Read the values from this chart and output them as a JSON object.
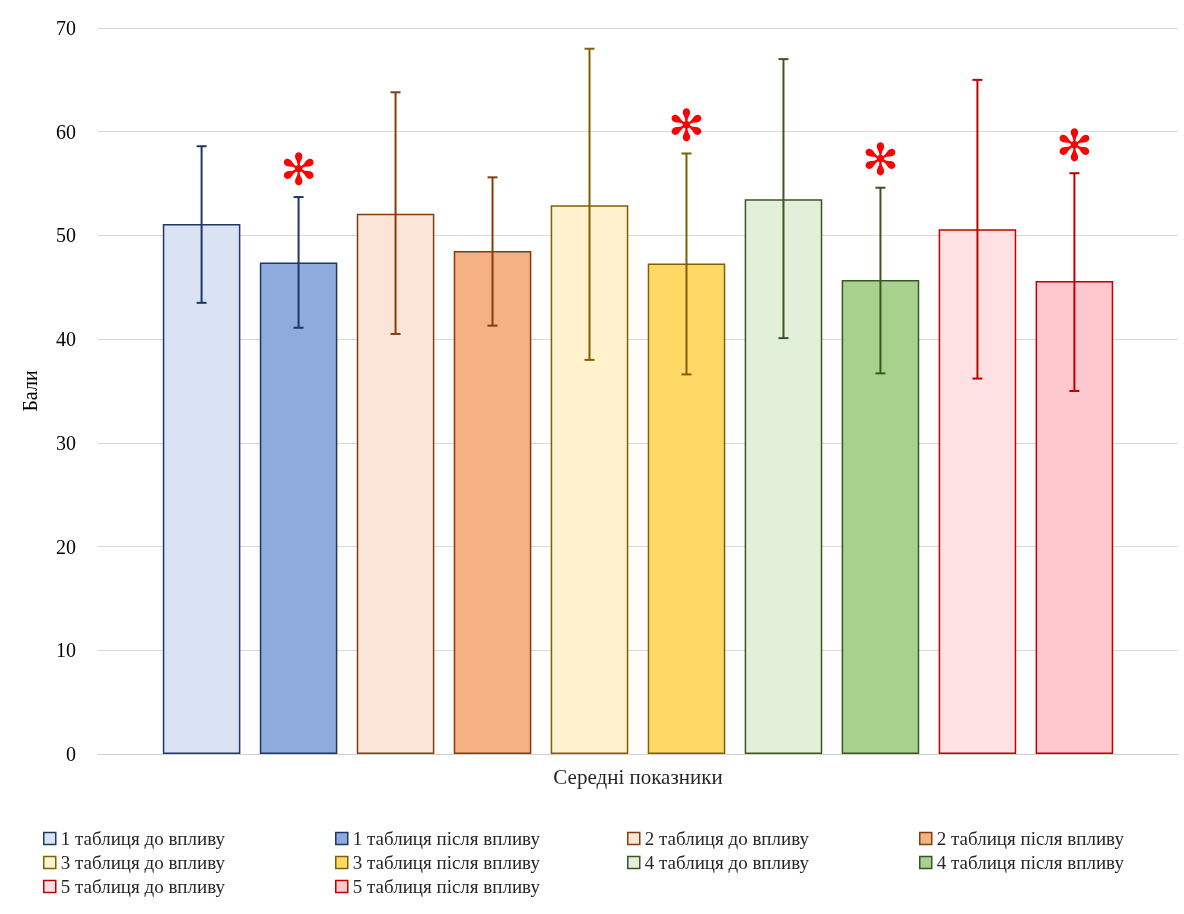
{
  "chart_data": {
    "type": "bar",
    "ylabel": "Бали",
    "categories": [
      "Середні показники"
    ],
    "ylim": [
      0,
      70
    ],
    "yticks": [
      0,
      10,
      20,
      30,
      40,
      50,
      60,
      70
    ],
    "grid": "y",
    "legend": "bottom",
    "series": [
      {
        "name": "1 таблиця до впливу",
        "color": "#dae3f3",
        "values": [
          51.1
        ],
        "errors": [
          [
            43.5,
            58.6
          ]
        ]
      },
      {
        "name": "1 таблиця після впливу",
        "color": "#8faadc",
        "values": [
          47.4
        ],
        "errors": [
          [
            41.1,
            53.7
          ]
        ],
        "value_labels": [
          "✻"
        ]
      },
      {
        "name": "2 таблиця до впливу",
        "color": "#fbe5d6",
        "values": [
          52.1
        ],
        "errors": [
          [
            40.5,
            63.8
          ]
        ]
      },
      {
        "name": "2 таблиця після впливу",
        "color": "#f4b183",
        "values": [
          48.5
        ],
        "errors": [
          [
            41.3,
            55.6
          ]
        ]
      },
      {
        "name": "3 таблиця до впливу",
        "color": "#fff2cc",
        "values": [
          52.9
        ],
        "errors": [
          [
            38.0,
            68.0
          ]
        ]
      },
      {
        "name": "3 таблиця після впливу",
        "color": "#ffd966",
        "values": [
          47.3
        ],
        "errors": [
          [
            36.6,
            57.9
          ]
        ],
        "value_labels": [
          "✻"
        ]
      },
      {
        "name": "4 таблиця до впливу",
        "color": "#e2f0d9",
        "values": [
          53.5
        ],
        "errors": [
          [
            40.1,
            67.0
          ]
        ]
      },
      {
        "name": "4 таблиця після впливу",
        "color": "#a9d18e",
        "values": [
          45.7
        ],
        "errors": [
          [
            36.7,
            54.6
          ]
        ],
        "value_labels": [
          "✻"
        ]
      },
      {
        "name": "5 таблиця до впливу",
        "color": "#ffe1e4",
        "values": [
          50.6
        ],
        "errors": [
          [
            36.2,
            65.0
          ]
        ]
      },
      {
        "name": "5 таблиця після впливу",
        "color": "#ffc7ce",
        "values": [
          45.6
        ],
        "errors": [
          [
            35.0,
            56.0
          ]
        ],
        "value_labels": [
          "✻"
        ]
      }
    ]
  }
}
